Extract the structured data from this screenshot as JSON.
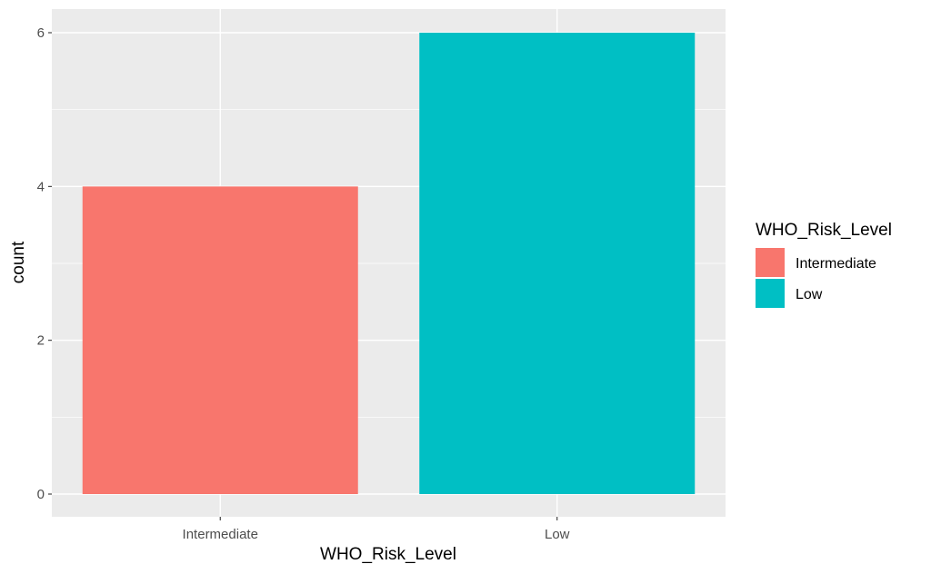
{
  "chart_data": {
    "type": "bar",
    "categories": [
      "Intermediate",
      "Low"
    ],
    "values": [
      4,
      6
    ],
    "colors": [
      "#F8766D",
      "#00BFC4"
    ],
    "xlabel": "WHO_Risk_Level",
    "ylabel": "count",
    "ylim": [
      0,
      6.3
    ],
    "yticks": [
      0,
      2,
      4,
      6
    ],
    "grid": true,
    "panel_background": "#EBEBEB",
    "legend": {
      "title": "WHO_Risk_Level",
      "position": "right",
      "entries": [
        "Intermediate",
        "Low"
      ]
    }
  }
}
